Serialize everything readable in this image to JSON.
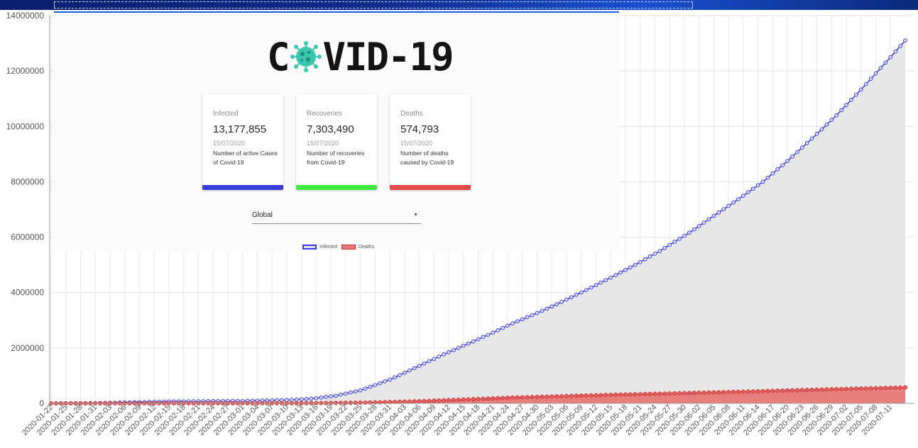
{
  "colors": {
    "infected": "#3b3bdc",
    "recoveries": "#3ee83e",
    "deaths": "#e24848",
    "area_fill": "#e3e3e3",
    "death_fill": "#e87777"
  },
  "logo": {
    "left": "C",
    "right": "VID-19",
    "icon": "virus-icon"
  },
  "cards": [
    {
      "title": "Infected",
      "value": "13,177,855",
      "date": "15/07/2020",
      "desc": "Number of active Cases of Covid-19",
      "color": "#3b3bdc"
    },
    {
      "title": "Recoveries",
      "value": "7,303,490",
      "date": "15/07/2020",
      "desc": "Number of recoveries from Covid-19",
      "color": "#3ee83e"
    },
    {
      "title": "Deaths",
      "value": "574,793",
      "date": "15/07/2020",
      "desc": "Number of deaths caused by Covid-19",
      "color": "#e24848"
    }
  ],
  "country_select": {
    "value": "Global",
    "arrow_icon": "caret-down-icon"
  },
  "chart_data": {
    "type": "line",
    "x_start": "2020-01-22",
    "x_end": "2020-07-14",
    "x_ticks": [
      "2020-01-22",
      "2020-01-25",
      "2020-01-28",
      "2020-01-31",
      "2020-02-03",
      "2020-02-06",
      "2020-02-09",
      "2020-02-12",
      "2020-02-15",
      "2020-02-18",
      "2020-02-21",
      "2020-02-24",
      "2020-02-27",
      "2020-03-01",
      "2020-03-04",
      "2020-03-07",
      "2020-03-10",
      "2020-03-13",
      "2020-03-16",
      "2020-03-19",
      "2020-03-22",
      "2020-03-25",
      "2020-03-28",
      "2020-03-31",
      "2020-04-03",
      "2020-04-06",
      "2020-04-09",
      "2020-04-12",
      "2020-04-15",
      "2020-04-18",
      "2020-04-21",
      "2020-04-24",
      "2020-04-27",
      "2020-04-30",
      "2020-05-03",
      "2020-05-06",
      "2020-05-09",
      "2020-05-12",
      "2020-05-15",
      "2020-05-18",
      "2020-05-21",
      "2020-05-24",
      "2020-05-27",
      "2020-05-30",
      "2020-06-02",
      "2020-06-05",
      "2020-06-08",
      "2020-06-11",
      "2020-06-14",
      "2020-06-17",
      "2020-06-20",
      "2020-06-23",
      "2020-06-26",
      "2020-06-29",
      "2020-07-02",
      "2020-07-05",
      "2020-07-08",
      "2020-07-11"
    ],
    "y_ticks": [
      "0",
      "2000000",
      "4000000",
      "6000000",
      "8000000",
      "10000000",
      "12000000",
      "14000000"
    ],
    "ylim": [
      0,
      14000000
    ],
    "legend": [
      "Infected",
      "Deaths"
    ],
    "series": [
      {
        "name": "Infected",
        "points": [
          [
            "2020-01-22",
            555
          ],
          [
            "2020-02-01",
            12000
          ],
          [
            "2020-02-15",
            69000
          ],
          [
            "2020-03-01",
            88000
          ],
          [
            "2020-03-10",
            119000
          ],
          [
            "2020-03-15",
            168000
          ],
          [
            "2020-03-20",
            275000
          ],
          [
            "2020-03-25",
            468000
          ],
          [
            "2020-03-31",
            857000
          ],
          [
            "2020-04-05",
            1270000
          ],
          [
            "2020-04-10",
            1690000
          ],
          [
            "2020-04-15",
            2080000
          ],
          [
            "2020-04-20",
            2470000
          ],
          [
            "2020-04-25",
            2890000
          ],
          [
            "2020-04-30",
            3260000
          ],
          [
            "2020-05-05",
            3660000
          ],
          [
            "2020-05-10",
            4090000
          ],
          [
            "2020-05-15",
            4540000
          ],
          [
            "2020-05-20",
            5000000
          ],
          [
            "2020-05-25",
            5500000
          ],
          [
            "2020-05-31",
            6160000
          ],
          [
            "2020-06-05",
            6770000
          ],
          [
            "2020-06-10",
            7370000
          ],
          [
            "2020-06-15",
            8000000
          ],
          [
            "2020-06-20",
            8750000
          ],
          [
            "2020-06-25",
            9560000
          ],
          [
            "2020-06-30",
            10400000
          ],
          [
            "2020-07-05",
            11330000
          ],
          [
            "2020-07-10",
            12300000
          ],
          [
            "2020-07-14",
            13100000
          ]
        ]
      },
      {
        "name": "Deaths",
        "points": [
          [
            "2020-01-22",
            17
          ],
          [
            "2020-02-15",
            1500
          ],
          [
            "2020-03-01",
            3000
          ],
          [
            "2020-03-15",
            6500
          ],
          [
            "2020-03-25",
            22000
          ],
          [
            "2020-04-05",
            69000
          ],
          [
            "2020-04-15",
            137000
          ],
          [
            "2020-04-25",
            207000
          ],
          [
            "2020-05-05",
            258000
          ],
          [
            "2020-05-15",
            308000
          ],
          [
            "2020-05-25",
            347000
          ],
          [
            "2020-06-05",
            396000
          ],
          [
            "2020-06-15",
            440000
          ],
          [
            "2020-06-25",
            490000
          ],
          [
            "2020-07-05",
            537000
          ],
          [
            "2020-07-14",
            575000
          ]
        ]
      }
    ]
  }
}
